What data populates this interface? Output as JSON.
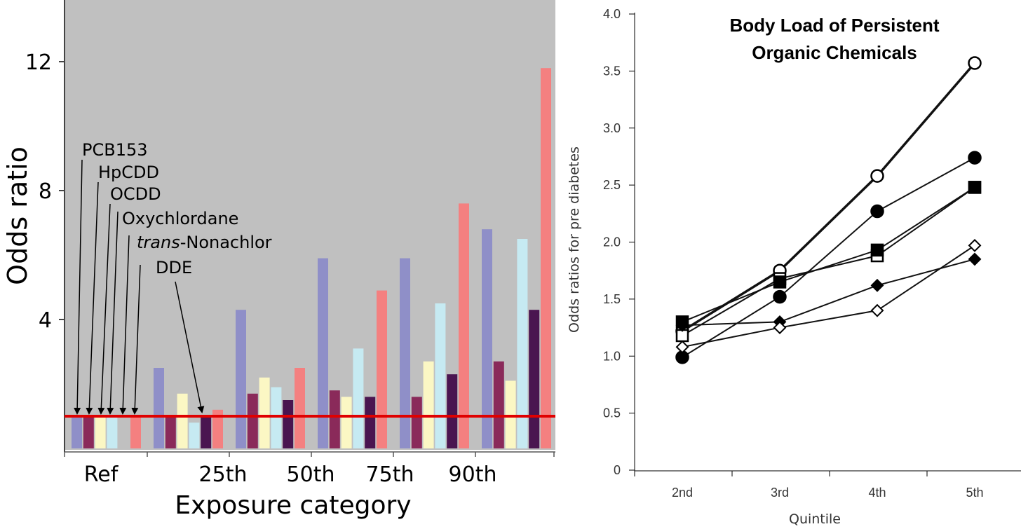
{
  "chart_data": [
    {
      "type": "bar",
      "ylabel": "Odds ratio",
      "xlabel": "Exposure category",
      "yticks": [
        "4",
        "8",
        "12"
      ],
      "ylim": [
        0,
        13.9
      ],
      "background": "#c0c0c0",
      "reference_line": {
        "value": 1.0,
        "color": "#e00000"
      },
      "categories": [
        "Ref",
        "",
        "25th",
        "50th",
        "75th",
        "90th"
      ],
      "category_labels": [
        "Ref",
        "25th",
        "50th",
        "75th",
        "90th"
      ],
      "series": [
        {
          "name": "PCB153",
          "color": "#8f8fc8",
          "values": [
            1.0,
            2.5,
            4.3,
            5.9,
            5.9,
            6.8
          ]
        },
        {
          "name": "HpCDD",
          "color": "#8a2a5a",
          "values": [
            1.0,
            1.0,
            1.7,
            1.8,
            1.6,
            2.7
          ]
        },
        {
          "name": "OCDD",
          "color": "#fbf7c4",
          "values": [
            1.0,
            1.7,
            2.2,
            1.6,
            2.7,
            2.1
          ]
        },
        {
          "name": "Oxychlordane",
          "color": "#c6eaf2",
          "values": [
            1.0,
            0.8,
            1.9,
            3.1,
            4.5,
            6.5
          ]
        },
        {
          "name": "trans-Nonachlor",
          "color": "#4a1550",
          "values": [
            0,
            1.0,
            1.5,
            1.6,
            2.3,
            4.3
          ]
        },
        {
          "name": "DDE",
          "color": "#f48080",
          "values": [
            1.0,
            1.2,
            2.5,
            4.9,
            7.6,
            11.8
          ]
        }
      ],
      "annotations": [
        {
          "text": "PCB153"
        },
        {
          "text": "HpCDD"
        },
        {
          "text": "OCDD"
        },
        {
          "text": "Oxychlordane"
        },
        {
          "prefix": "trans",
          "text": "-Nonachlor"
        },
        {
          "text": "DDE"
        }
      ]
    },
    {
      "type": "line",
      "title_line1": "Body Load of Persistent",
      "title_line2": "Organic Chemicals",
      "ylabel": "Odds ratios for pre diabetes",
      "xlabel": "Quintile",
      "categories": [
        "2nd",
        "3rd",
        "4th",
        "5th"
      ],
      "ylim": [
        0,
        4.0
      ],
      "yticks": [
        "0",
        "0.5",
        "1.0",
        "1.5",
        "2.0",
        "2.5",
        "3.0",
        "3.5",
        "4.0"
      ],
      "series": [
        {
          "marker": "open-circle",
          "values": [
            1.22,
            1.75,
            2.58,
            3.57
          ],
          "bold": true
        },
        {
          "marker": "filled-circle",
          "values": [
            0.99,
            1.52,
            2.27,
            2.74
          ]
        },
        {
          "marker": "open-square",
          "values": [
            1.18,
            1.68,
            1.88,
            2.48
          ]
        },
        {
          "marker": "filled-square",
          "values": [
            1.3,
            1.65,
            1.93,
            2.48
          ]
        },
        {
          "marker": "filled-diamond",
          "values": [
            1.27,
            1.3,
            1.62,
            1.85
          ]
        },
        {
          "marker": "open-diamond",
          "values": [
            1.08,
            1.25,
            1.4,
            1.97
          ]
        }
      ]
    }
  ]
}
